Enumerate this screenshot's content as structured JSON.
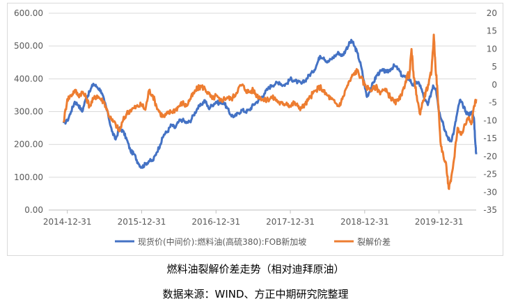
{
  "chart_data": {
    "type": "line",
    "title": "",
    "x_ticks": [
      "2014-12-31",
      "2015-12-31",
      "2016-12-31",
      "2017-12-31",
      "2018-12-31",
      "2019-12-31"
    ],
    "y_left": {
      "ticks": [
        "600.00",
        "500.00",
        "400.00",
        "300.00",
        "200.00",
        "100.00",
        "0.00"
      ],
      "min": 0,
      "max": 600
    },
    "y_right": {
      "ticks": [
        "20",
        "15",
        "10",
        "5",
        "0",
        "-5",
        "-10",
        "-15",
        "-20",
        "-25",
        "-30",
        "-35"
      ],
      "min": -35,
      "max": 20
    },
    "grid": "horizontal",
    "legend_position": "bottom",
    "series": [
      {
        "name": "现货价(中间价):燃料油(高硫380):FOB新加坡",
        "axis": "left",
        "color": "#4472c4",
        "points": [
          [
            2014.95,
            265
          ],
          [
            2015.0,
            272
          ],
          [
            2015.05,
            300
          ],
          [
            2015.1,
            330
          ],
          [
            2015.15,
            320
          ],
          [
            2015.2,
            300
          ],
          [
            2015.25,
            340
          ],
          [
            2015.3,
            360
          ],
          [
            2015.35,
            385
          ],
          [
            2015.4,
            375
          ],
          [
            2015.45,
            365
          ],
          [
            2015.5,
            330
          ],
          [
            2015.55,
            290
          ],
          [
            2015.6,
            240
          ],
          [
            2015.65,
            215
          ],
          [
            2015.7,
            250
          ],
          [
            2015.75,
            240
          ],
          [
            2015.8,
            215
          ],
          [
            2015.85,
            180
          ],
          [
            2015.9,
            170
          ],
          [
            2015.95,
            145
          ],
          [
            2016.0,
            130
          ],
          [
            2016.05,
            140
          ],
          [
            2016.1,
            150
          ],
          [
            2016.15,
            150
          ],
          [
            2016.2,
            175
          ],
          [
            2016.25,
            200
          ],
          [
            2016.3,
            230
          ],
          [
            2016.35,
            240
          ],
          [
            2016.4,
            260
          ],
          [
            2016.45,
            250
          ],
          [
            2016.5,
            270
          ],
          [
            2016.55,
            275
          ],
          [
            2016.6,
            265
          ],
          [
            2016.65,
            270
          ],
          [
            2016.7,
            290
          ],
          [
            2016.75,
            310
          ],
          [
            2016.8,
            320
          ],
          [
            2016.85,
            335
          ],
          [
            2016.9,
            310
          ],
          [
            2016.95,
            320
          ],
          [
            2017.0,
            330
          ],
          [
            2017.05,
            325
          ],
          [
            2017.1,
            330
          ],
          [
            2017.15,
            310
          ],
          [
            2017.2,
            290
          ],
          [
            2017.25,
            285
          ],
          [
            2017.3,
            295
          ],
          [
            2017.35,
            305
          ],
          [
            2017.4,
            300
          ],
          [
            2017.45,
            305
          ],
          [
            2017.5,
            320
          ],
          [
            2017.55,
            330
          ],
          [
            2017.6,
            340
          ],
          [
            2017.65,
            355
          ],
          [
            2017.7,
            370
          ],
          [
            2017.75,
            380
          ],
          [
            2017.8,
            385
          ],
          [
            2017.85,
            390
          ],
          [
            2017.9,
            380
          ],
          [
            2017.95,
            385
          ],
          [
            2018.0,
            400
          ],
          [
            2018.05,
            395
          ],
          [
            2018.1,
            390
          ],
          [
            2018.15,
            385
          ],
          [
            2018.2,
            395
          ],
          [
            2018.25,
            410
          ],
          [
            2018.3,
            420
          ],
          [
            2018.35,
            440
          ],
          [
            2018.4,
            470
          ],
          [
            2018.45,
            465
          ],
          [
            2018.5,
            450
          ],
          [
            2018.55,
            460
          ],
          [
            2018.6,
            470
          ],
          [
            2018.65,
            480
          ],
          [
            2018.7,
            470
          ],
          [
            2018.75,
            490
          ],
          [
            2018.8,
            510
          ],
          [
            2018.83,
            515
          ],
          [
            2018.86,
            500
          ],
          [
            2018.9,
            480
          ],
          [
            2018.95,
            440
          ],
          [
            2019.0,
            380
          ],
          [
            2019.03,
            345
          ],
          [
            2019.08,
            370
          ],
          [
            2019.12,
            390
          ],
          [
            2019.16,
            410
          ],
          [
            2019.2,
            420
          ],
          [
            2019.25,
            425
          ],
          [
            2019.3,
            420
          ],
          [
            2019.35,
            430
          ],
          [
            2019.4,
            440
          ],
          [
            2019.45,
            430
          ],
          [
            2019.5,
            410
          ],
          [
            2019.55,
            405
          ],
          [
            2019.6,
            400
          ],
          [
            2019.65,
            380
          ],
          [
            2019.7,
            390
          ],
          [
            2019.75,
            380
          ],
          [
            2019.8,
            340
          ],
          [
            2019.85,
            320
          ],
          [
            2019.88,
            345
          ],
          [
            2019.92,
            380
          ],
          [
            2019.96,
            370
          ],
          [
            2020.0,
            300
          ],
          [
            2020.05,
            270
          ],
          [
            2020.08,
            240
          ],
          [
            2020.12,
            220
          ],
          [
            2020.16,
            210
          ],
          [
            2020.2,
            240
          ],
          [
            2020.24,
            290
          ],
          [
            2020.28,
            335
          ],
          [
            2020.32,
            320
          ],
          [
            2020.36,
            300
          ],
          [
            2020.4,
            290
          ],
          [
            2020.44,
            300
          ],
          [
            2020.47,
            280
          ],
          [
            2020.49,
            200
          ],
          [
            2020.5,
            170
          ]
        ]
      },
      {
        "name": "裂解价差",
        "axis": "right",
        "color": "#ed7d31",
        "points": [
          [
            2014.95,
            -10.5
          ],
          [
            2015.0,
            -4
          ],
          [
            2015.05,
            -3
          ],
          [
            2015.1,
            -1.5
          ],
          [
            2015.15,
            -3
          ],
          [
            2015.2,
            -2
          ],
          [
            2015.25,
            -3.5
          ],
          [
            2015.3,
            -6
          ],
          [
            2015.35,
            -4
          ],
          [
            2015.4,
            -3
          ],
          [
            2015.45,
            -4
          ],
          [
            2015.5,
            -5
          ],
          [
            2015.55,
            -8
          ],
          [
            2015.6,
            -10
          ],
          [
            2015.65,
            -11
          ],
          [
            2015.7,
            -13
          ],
          [
            2015.75,
            -10
          ],
          [
            2015.8,
            -8
          ],
          [
            2015.85,
            -7
          ],
          [
            2015.9,
            -6.5
          ],
          [
            2015.95,
            -6
          ],
          [
            2016.0,
            -5.5
          ],
          [
            2016.05,
            -7
          ],
          [
            2016.1,
            -1.5
          ],
          [
            2016.15,
            -3
          ],
          [
            2016.2,
            -6
          ],
          [
            2016.25,
            -8
          ],
          [
            2016.3,
            -9
          ],
          [
            2016.35,
            -8
          ],
          [
            2016.4,
            -7.5
          ],
          [
            2016.45,
            -7
          ],
          [
            2016.5,
            -6
          ],
          [
            2016.55,
            -5
          ],
          [
            2016.6,
            -6
          ],
          [
            2016.65,
            -4
          ],
          [
            2016.7,
            -2.5
          ],
          [
            2016.75,
            -1
          ],
          [
            2016.8,
            -0.5
          ],
          [
            2016.85,
            -1
          ],
          [
            2016.9,
            -2.5
          ],
          [
            2016.95,
            -4
          ],
          [
            2017.0,
            -3
          ],
          [
            2017.05,
            -4.5
          ],
          [
            2017.1,
            -4
          ],
          [
            2017.15,
            -3.5
          ],
          [
            2017.2,
            -4
          ],
          [
            2017.25,
            -3
          ],
          [
            2017.3,
            -1
          ],
          [
            2017.35,
            0
          ],
          [
            2017.4,
            -1.5
          ],
          [
            2017.45,
            -2
          ],
          [
            2017.5,
            -1.5
          ],
          [
            2017.55,
            -3
          ],
          [
            2017.6,
            -3.5
          ],
          [
            2017.65,
            -4.5
          ],
          [
            2017.7,
            -4
          ],
          [
            2017.75,
            -3.5
          ],
          [
            2017.8,
            -4
          ],
          [
            2017.85,
            -5
          ],
          [
            2017.9,
            -5.5
          ],
          [
            2017.95,
            -5
          ],
          [
            2018.0,
            -6
          ],
          [
            2018.05,
            -5
          ],
          [
            2018.1,
            -6
          ],
          [
            2018.15,
            -6.5
          ],
          [
            2018.2,
            -5.5
          ],
          [
            2018.25,
            -4
          ],
          [
            2018.3,
            -2.5
          ],
          [
            2018.35,
            -1.5
          ],
          [
            2018.4,
            -0.5
          ],
          [
            2018.45,
            -2
          ],
          [
            2018.5,
            -3
          ],
          [
            2018.55,
            -4
          ],
          [
            2018.6,
            -5
          ],
          [
            2018.65,
            -6
          ],
          [
            2018.7,
            -4
          ],
          [
            2018.75,
            -1
          ],
          [
            2018.8,
            1
          ],
          [
            2018.85,
            3
          ],
          [
            2018.9,
            4
          ],
          [
            2018.95,
            2
          ],
          [
            2019.0,
            0
          ],
          [
            2019.05,
            -1
          ],
          [
            2019.1,
            -1.5
          ],
          [
            2019.15,
            -0.5
          ],
          [
            2019.2,
            -2
          ],
          [
            2019.25,
            -1.5
          ],
          [
            2019.3,
            -2
          ],
          [
            2019.35,
            -3.5
          ],
          [
            2019.4,
            -5
          ],
          [
            2019.45,
            -4.5
          ],
          [
            2019.5,
            -3
          ],
          [
            2019.55,
            1
          ],
          [
            2019.58,
            3
          ],
          [
            2019.6,
            2
          ],
          [
            2019.63,
            10
          ],
          [
            2019.66,
            2
          ],
          [
            2019.7,
            -3
          ],
          [
            2019.74,
            -8
          ],
          [
            2019.78,
            -5
          ],
          [
            2019.82,
            -2
          ],
          [
            2019.86,
            0
          ],
          [
            2019.9,
            4
          ],
          [
            2019.93,
            14
          ],
          [
            2019.95,
            6
          ],
          [
            2019.98,
            -2
          ],
          [
            2020.02,
            -16
          ],
          [
            2020.06,
            -20
          ],
          [
            2020.1,
            -23
          ],
          [
            2020.13,
            -29
          ],
          [
            2020.16,
            -27
          ],
          [
            2020.2,
            -21
          ],
          [
            2020.25,
            -12
          ],
          [
            2020.3,
            -14
          ],
          [
            2020.35,
            -11
          ],
          [
            2020.4,
            -9
          ],
          [
            2020.44,
            -10.5
          ],
          [
            2020.47,
            -6
          ],
          [
            2020.5,
            -4
          ]
        ]
      }
    ]
  },
  "captions": {
    "line1": "燃料油裂解价差走势（相对迪拜原油）",
    "line2": "数据来源：WIND、方正中期研究院整理"
  }
}
